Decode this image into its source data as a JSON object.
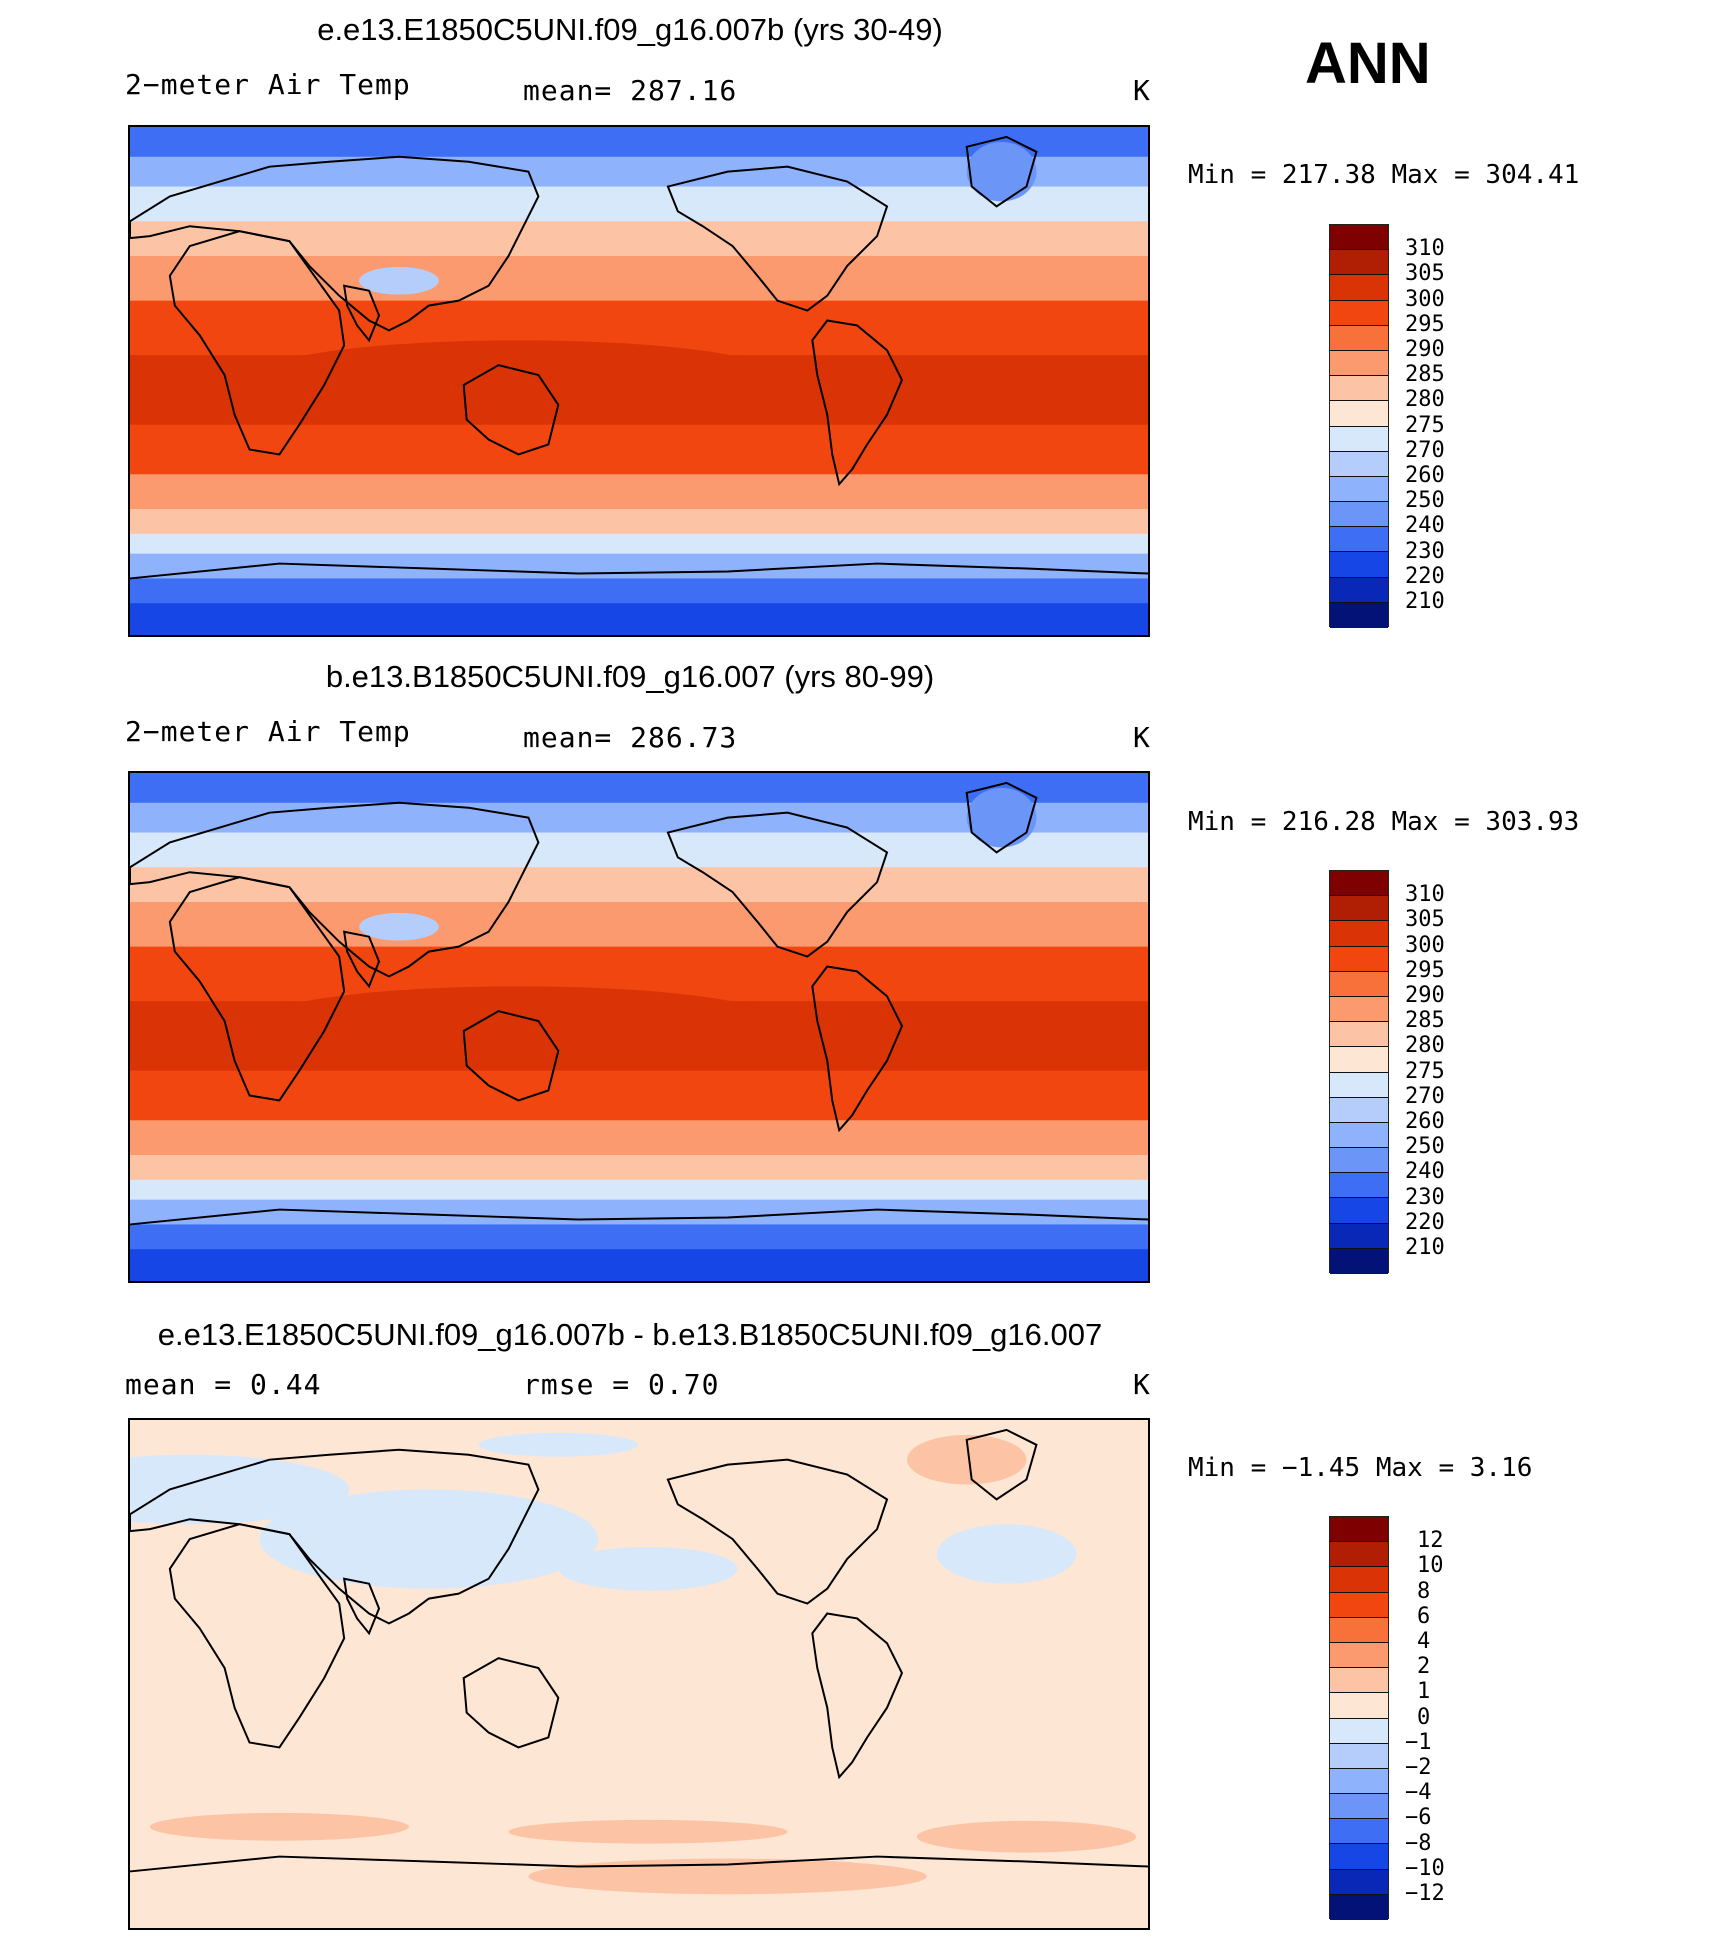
{
  "season": "ANN",
  "panels": [
    {
      "title": "e.e13.E1850C5UNI.f09_g16.007b (yrs 30-49)",
      "left_label": "2−meter Air Temp",
      "center_label": "mean= 287.16",
      "units": "K",
      "minmax": "Min  =  217.38 Max  =  304.41",
      "colorbar_labels": [
        "310",
        "305",
        "300",
        "295",
        "290",
        "285",
        "280",
        "275",
        "270",
        "260",
        "250",
        "240",
        "230",
        "220",
        "210"
      ]
    },
    {
      "title": "b.e13.B1850C5UNI.f09_g16.007 (yrs 80-99)",
      "left_label": "2−meter Air Temp",
      "center_label": "mean= 286.73",
      "units": "K",
      "minmax": "Min  =  216.28 Max  =  303.93",
      "colorbar_labels": [
        "310",
        "305",
        "300",
        "295",
        "290",
        "285",
        "280",
        "275",
        "270",
        "260",
        "250",
        "240",
        "230",
        "220",
        "210"
      ]
    },
    {
      "title": "e.e13.E1850C5UNI.f09_g16.007b - b.e13.B1850C5UNI.f09_g16.007",
      "left_label": "mean =    0.44",
      "center_label": "rmse =    0.70",
      "units": "K",
      "minmax": "Min  =   −1.45 Max  =    3.16",
      "colorbar_labels": [
        "12",
        "10",
        "8",
        "6",
        "4",
        "2",
        "1",
        "0",
        "−1",
        "−2",
        "−4",
        "−6",
        "−8",
        "−10",
        "−12"
      ]
    }
  ],
  "colors": {
    "colorbar_scale": [
      "#7f0000",
      "#b01e04",
      "#d93306",
      "#f1460f",
      "#f8703a",
      "#fb9a6e",
      "#fcc4a5",
      "#fde6d4",
      "#d8e8fb",
      "#b5cdfa",
      "#8eb2fb",
      "#6b95f6",
      "#3d6ef4",
      "#1646e6",
      "#0a28b8",
      "#021277"
    ]
  }
}
